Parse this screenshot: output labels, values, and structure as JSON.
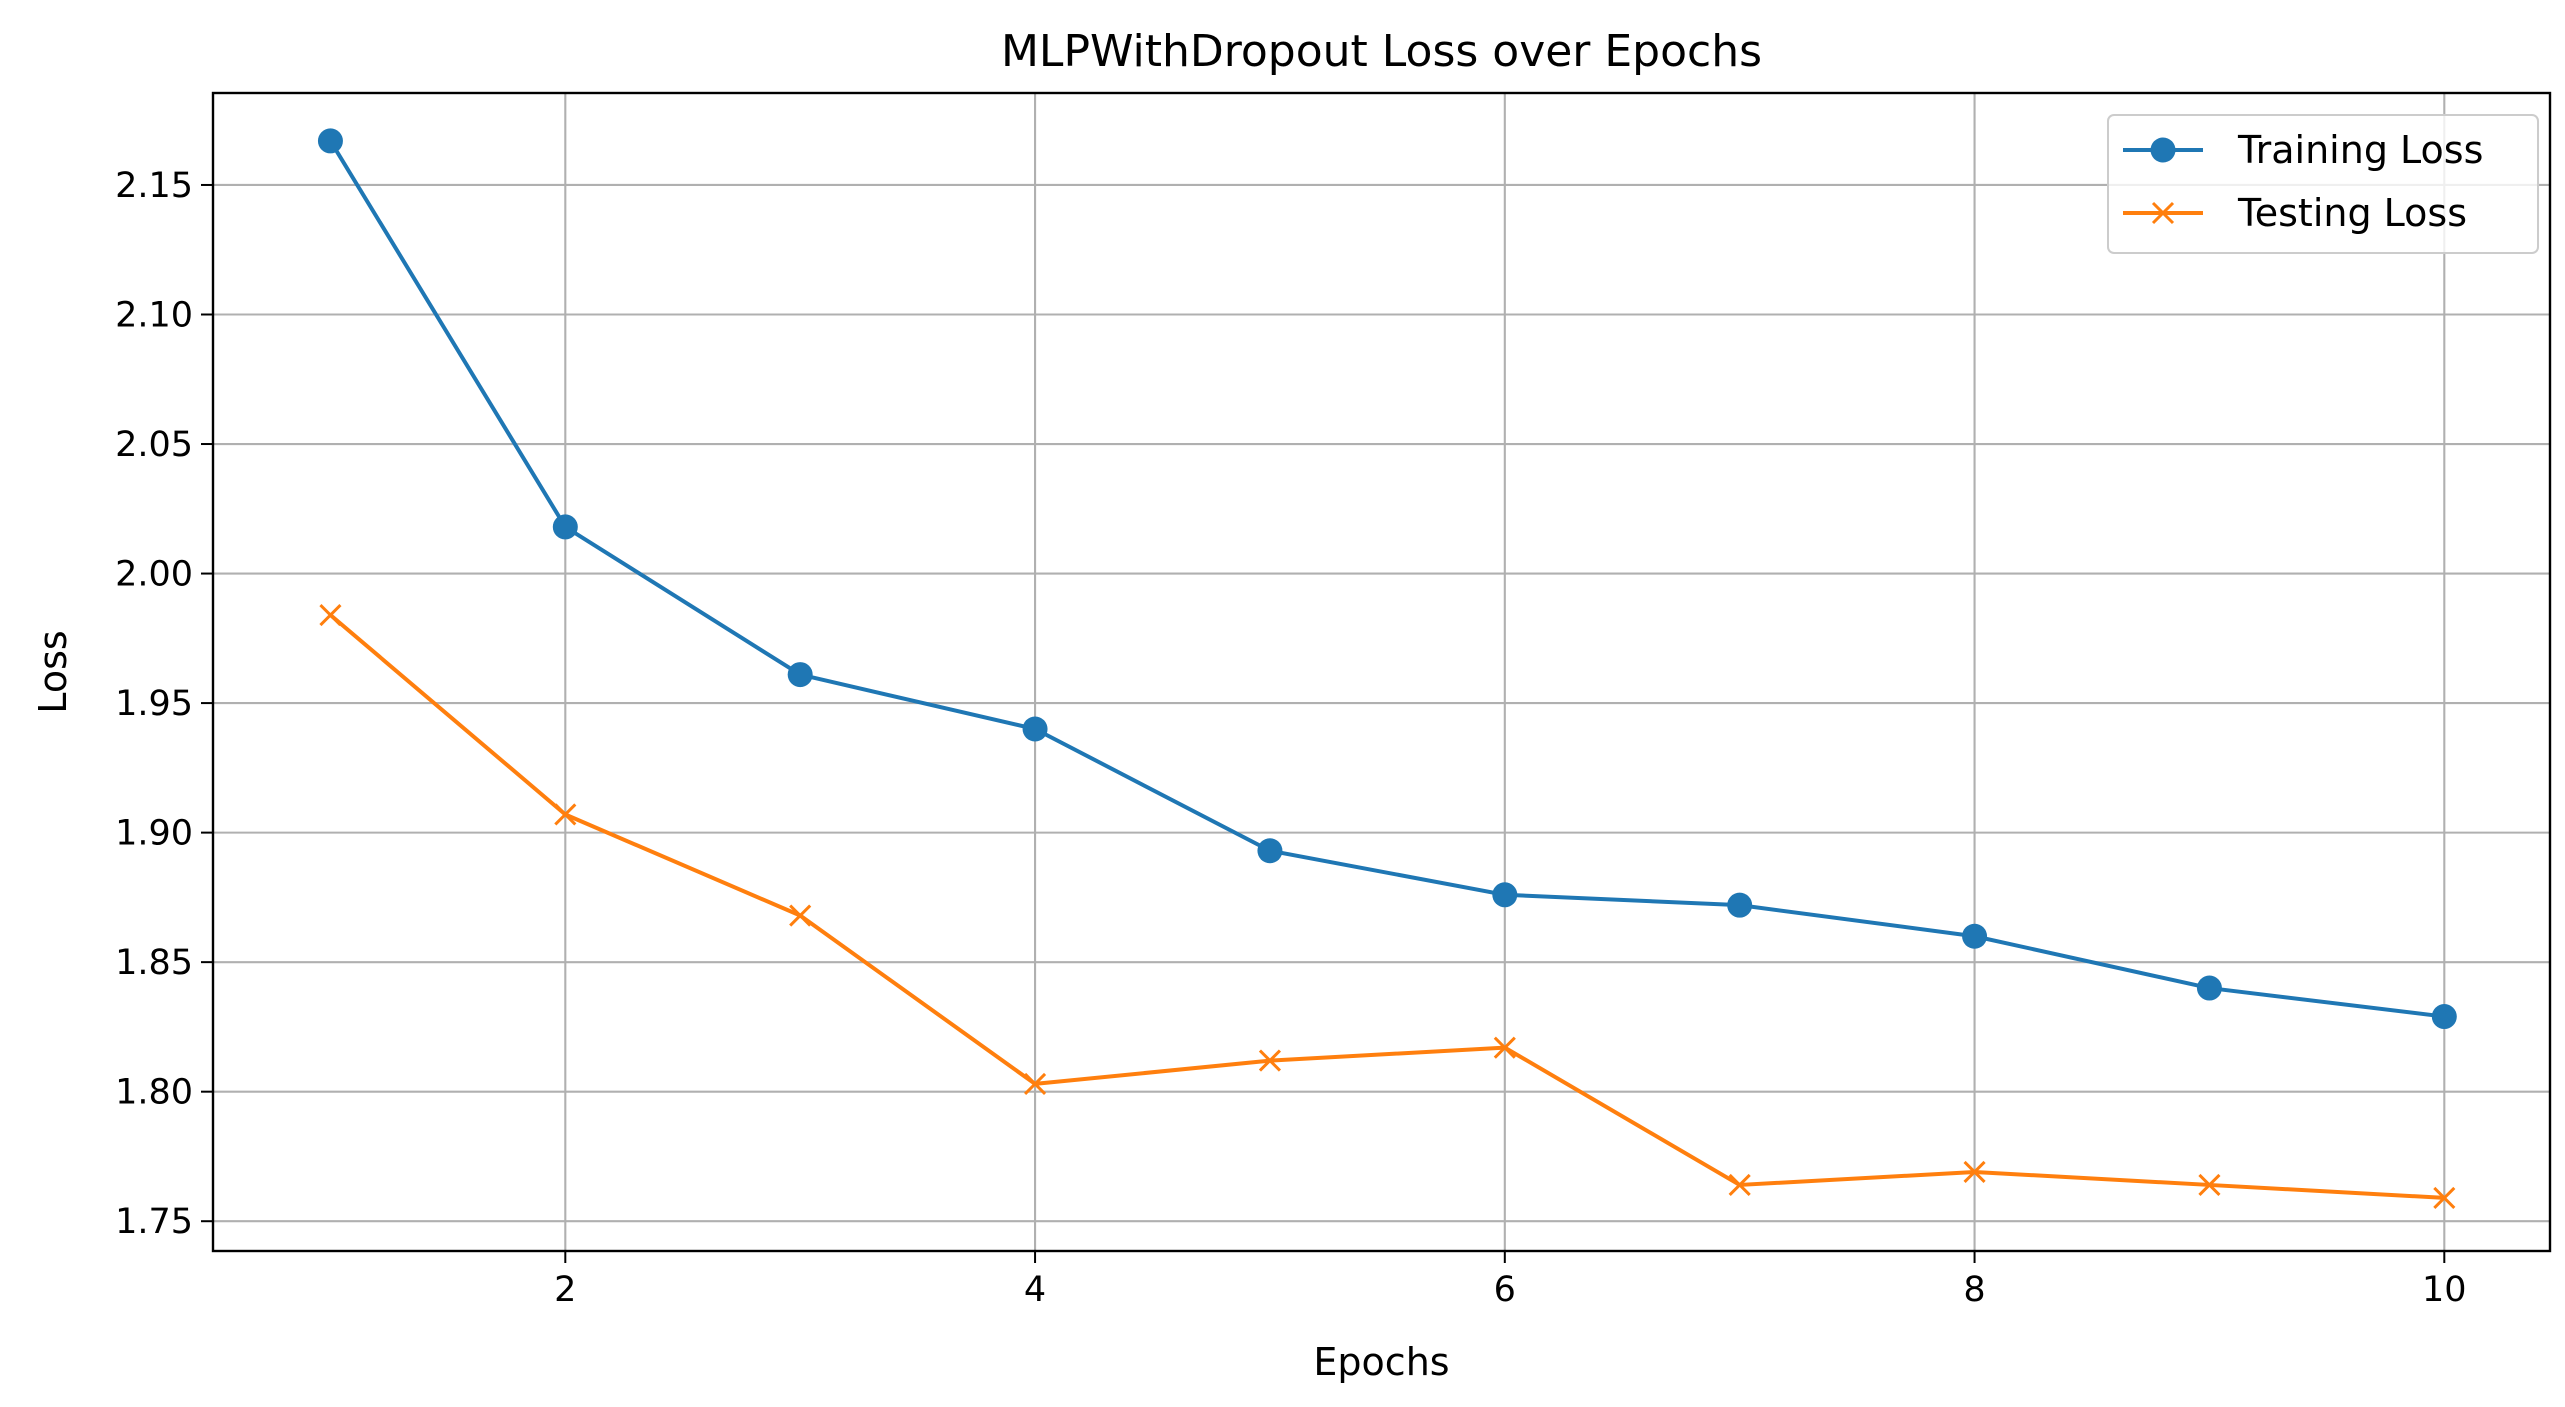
{
  "chart_data": {
    "type": "line",
    "title": "MLPWithDropout Loss over Epochs",
    "xlabel": "Epochs",
    "ylabel": "Loss",
    "x": [
      1,
      2,
      3,
      4,
      5,
      6,
      7,
      8,
      9,
      10
    ],
    "xlim": [
      0.5,
      10.45
    ],
    "ylim": [
      1.7385,
      2.1855
    ],
    "xticks": [
      2,
      4,
      6,
      8,
      10
    ],
    "yticks": [
      1.75,
      1.8,
      1.85,
      1.9,
      1.95,
      2.0,
      2.05,
      2.1,
      2.15
    ],
    "xtick_labels": [
      "2",
      "4",
      "6",
      "8",
      "10"
    ],
    "ytick_labels": [
      "1.75",
      "1.80",
      "1.85",
      "1.90",
      "1.95",
      "2.00",
      "2.05",
      "2.10",
      "2.15"
    ],
    "grid": true,
    "legend_position": "top-right",
    "series": [
      {
        "name": "Training Loss",
        "color": "#1f77b4",
        "marker": "circle",
        "values": [
          2.167,
          2.018,
          1.961,
          1.94,
          1.893,
          1.876,
          1.872,
          1.86,
          1.84,
          1.829
        ]
      },
      {
        "name": "Testing Loss",
        "color": "#ff7f0e",
        "marker": "x",
        "values": [
          1.984,
          1.907,
          1.868,
          1.803,
          1.812,
          1.817,
          1.764,
          1.769,
          1.764,
          1.759
        ]
      }
    ]
  }
}
